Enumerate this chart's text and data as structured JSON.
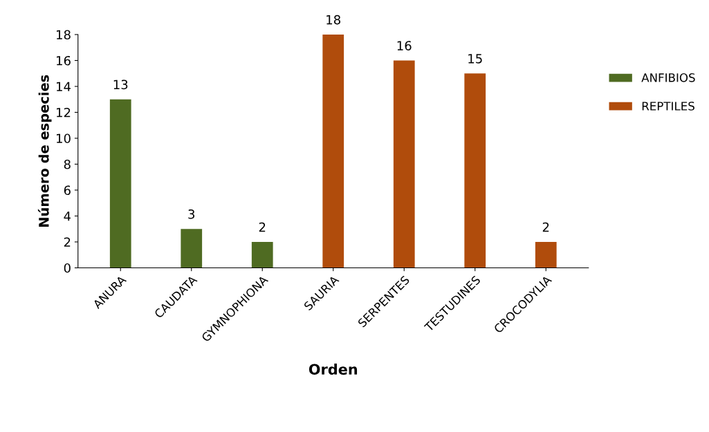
{
  "chart_data": {
    "type": "bar",
    "xlabel": "Orden",
    "ylabel": "Número de especies",
    "categories": [
      "ANURA",
      "CAUDATA",
      "GYMNOPHIONA",
      "SAURIA",
      "SERPENTES",
      "TESTUDINES",
      "CROCODYLIA"
    ],
    "series": [
      {
        "name": "ANFIBIOS",
        "color": "#4f6b22",
        "values": [
          13,
          3,
          2,
          null,
          null,
          null,
          null
        ]
      },
      {
        "name": "REPTILES",
        "color": "#b04c0c",
        "values": [
          null,
          null,
          null,
          18,
          16,
          15,
          2
        ]
      }
    ],
    "ylim": [
      0,
      18
    ],
    "yticks": [
      0,
      2,
      4,
      6,
      8,
      10,
      12,
      14,
      16,
      18
    ],
    "data_labels": true,
    "legend": "right",
    "grid": false
  }
}
